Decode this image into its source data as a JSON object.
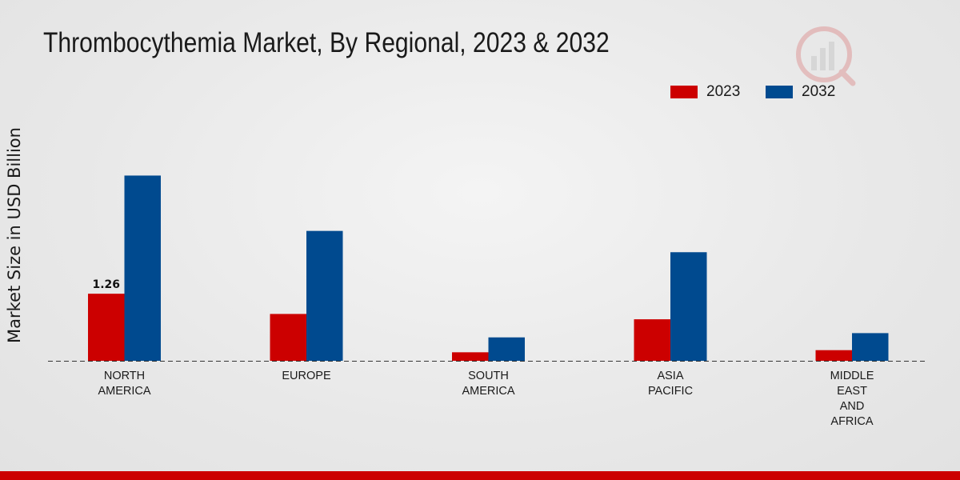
{
  "chart_data": {
    "type": "bar",
    "title": "Thrombocythemia Market, By Regional, 2023 & 2032",
    "ylabel": "Market Size in USD Billion",
    "xlabel": "",
    "categories": [
      [
        "NORTH",
        "AMERICA"
      ],
      [
        "EUROPE"
      ],
      [
        "SOUTH",
        "AMERICA"
      ],
      [
        "ASIA",
        "PACIFIC"
      ],
      [
        "MIDDLE",
        "EAST",
        "AND",
        "AFRICA"
      ]
    ],
    "series": [
      {
        "name": "2023",
        "color": "#cc0000",
        "values": [
          1.26,
          0.88,
          0.16,
          0.78,
          0.2
        ]
      },
      {
        "name": "2032",
        "color": "#004a8f",
        "values": [
          3.48,
          2.44,
          0.44,
          2.04,
          0.52
        ]
      }
    ],
    "data_labels": [
      {
        "series": 0,
        "index": 0,
        "text": "1.26"
      }
    ],
    "ylim": [
      0,
      5.2
    ],
    "legend_position": "top-right"
  },
  "footer": {
    "bar_color": "#cc0000"
  }
}
